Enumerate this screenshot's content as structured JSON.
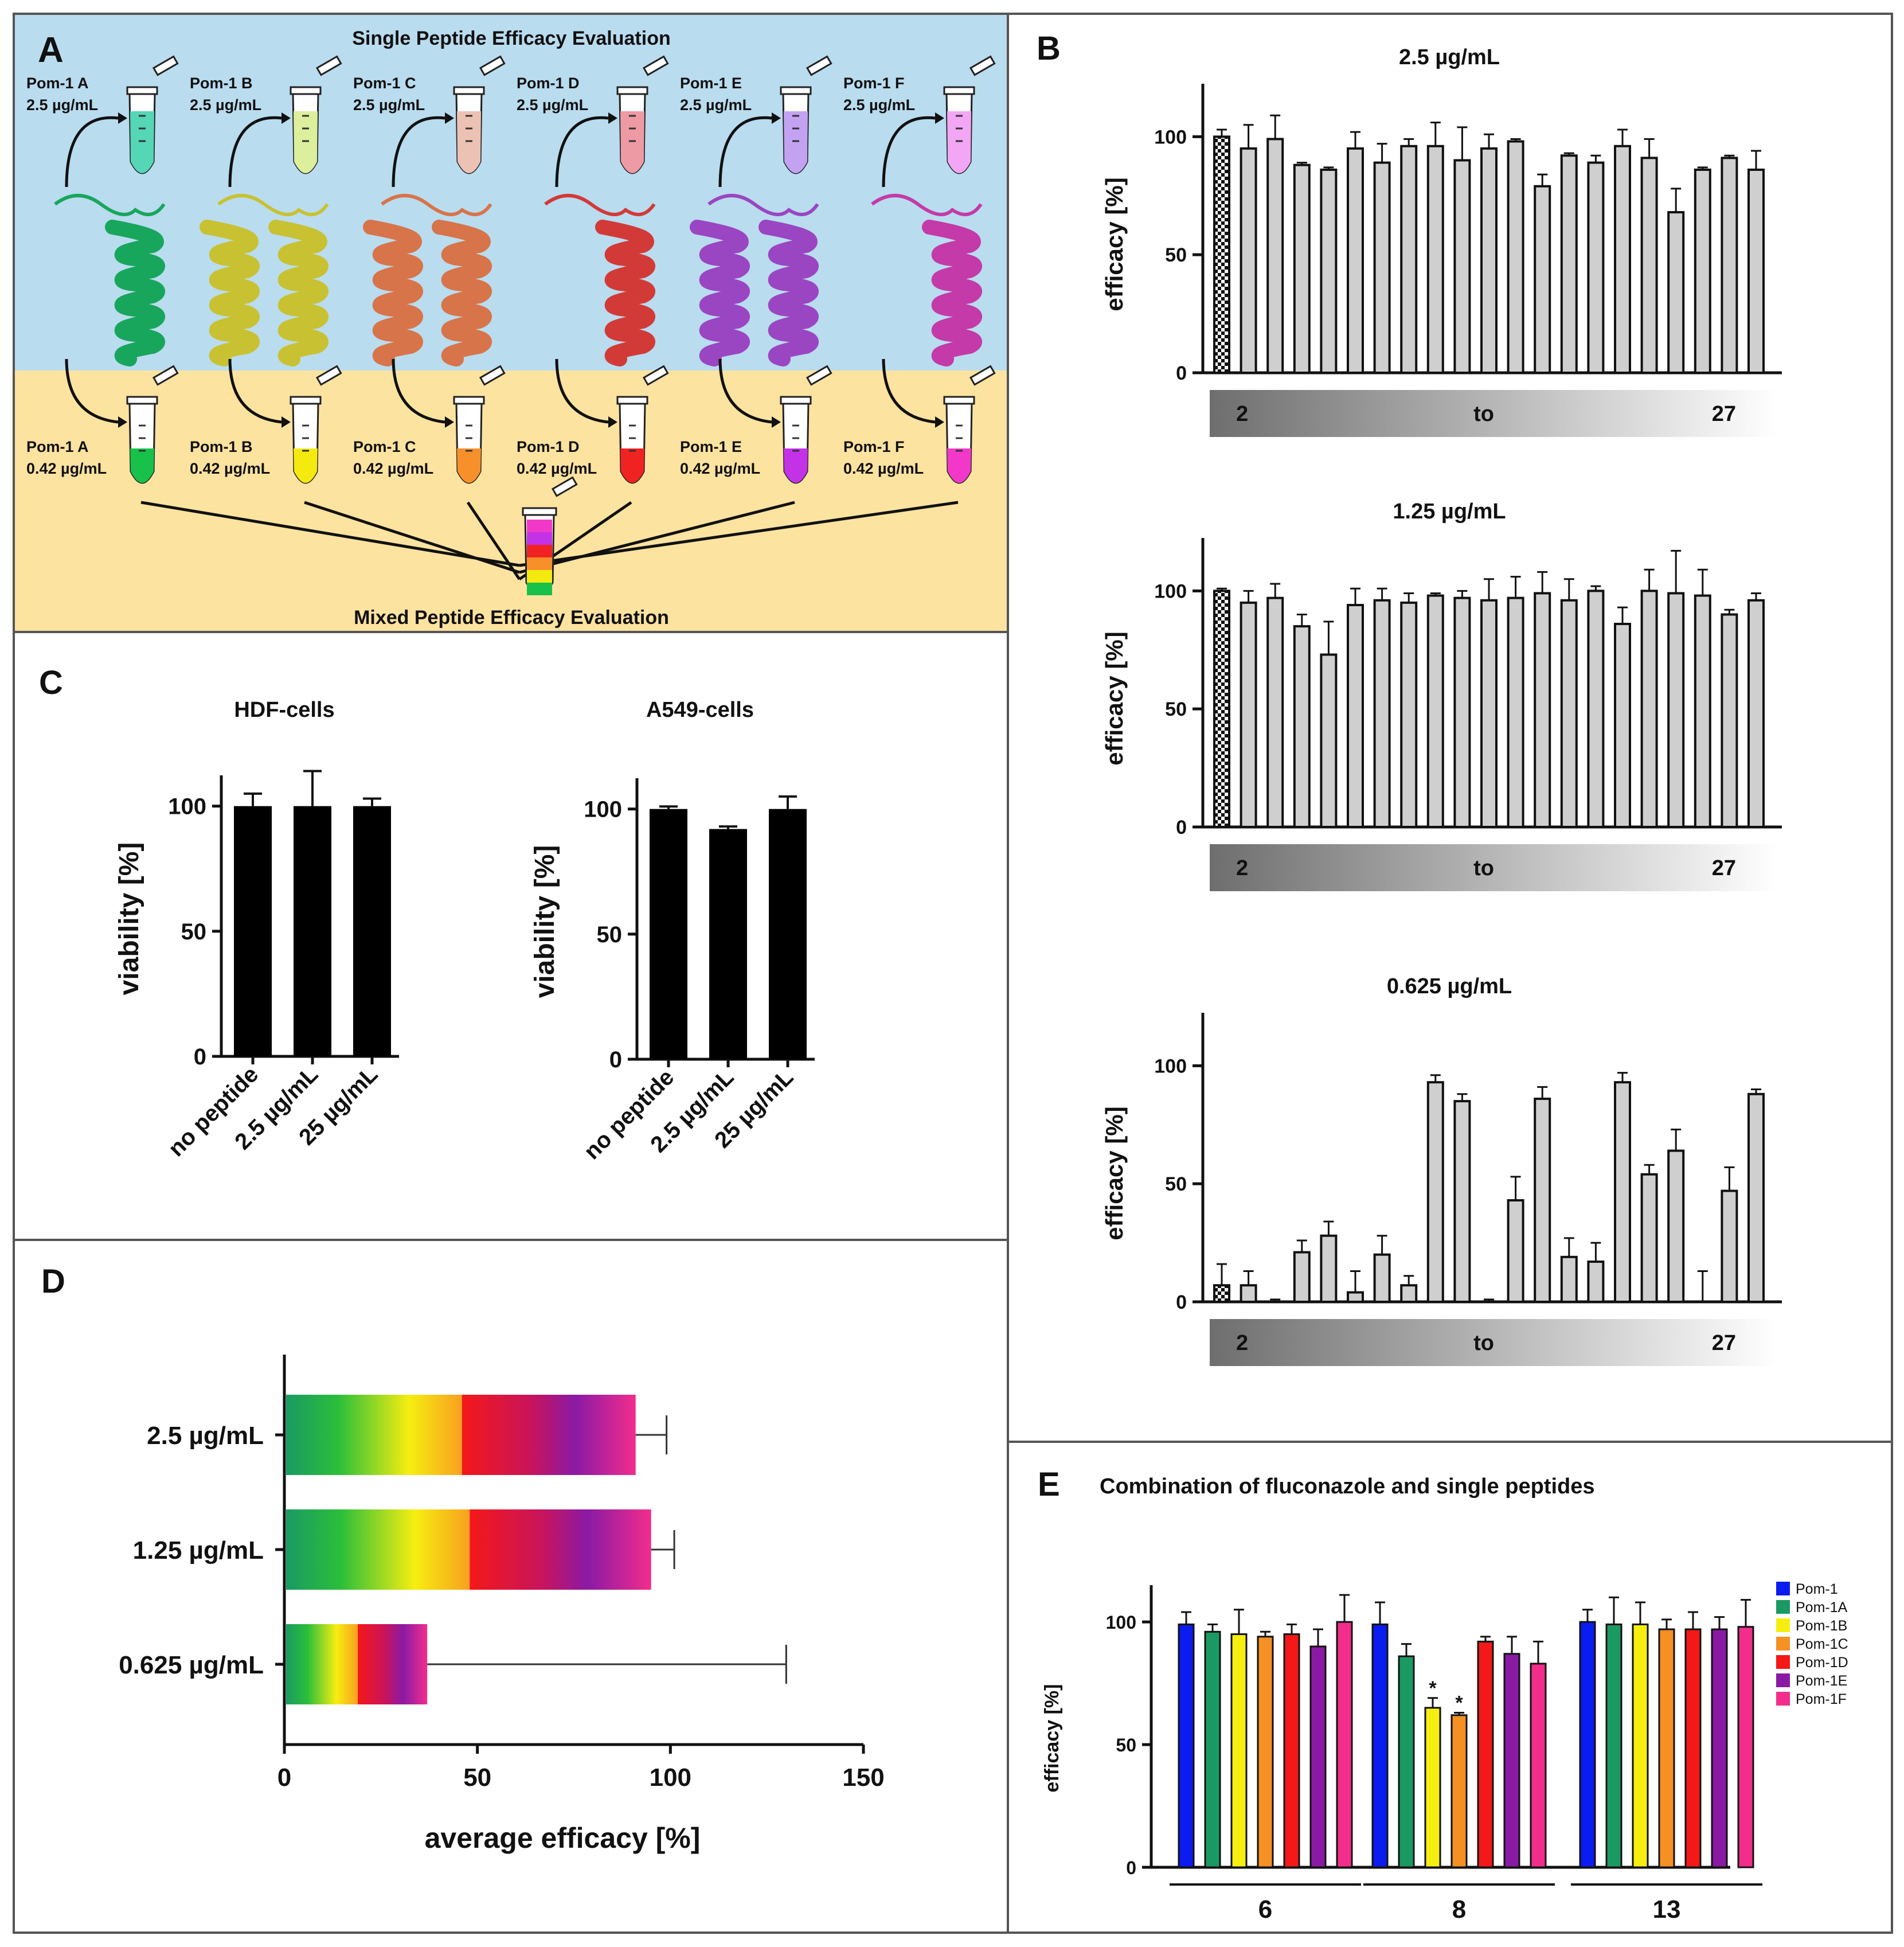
{
  "panel_labels": {
    "a": "A",
    "b": "B",
    "c": "C",
    "d": "D",
    "e": "E"
  },
  "colors": {
    "panel_a_top_bg": "#b9dcef",
    "panel_a_bottom_bg": "#fde3a0",
    "pom1": "#0a1cf0",
    "pom1a": "#1a9a62",
    "pom1b": "#f6ee10",
    "pom1c": "#f59022",
    "pom1d": "#f41818",
    "pom1e": "#8a1aa4",
    "pom1f": "#f22d8c"
  },
  "panel_a": {
    "title_top": "Single Peptide Efficacy Evaluation",
    "title_bottom": "Mixed Peptide Efficacy Evaluation",
    "tubes_top": [
      {
        "name": "Pom-1 A",
        "conc": "2.5 µg/mL",
        "color": "#55d6b4"
      },
      {
        "name": "Pom-1 B",
        "conc": "2.5 µg/mL",
        "color": "#dcef9c"
      },
      {
        "name": "Pom-1 C",
        "conc": "2.5 µg/mL",
        "color": "#ecc2b4"
      },
      {
        "name": "Pom-1 D",
        "conc": "2.5 µg/mL",
        "color": "#ee9aa4"
      },
      {
        "name": "Pom-1 E",
        "conc": "2.5 µg/mL",
        "color": "#c4a2f2"
      },
      {
        "name": "Pom-1 F",
        "conc": "2.5 µg/mL",
        "color": "#f2a6f4"
      }
    ],
    "helix_colors": [
      "#18a65c",
      "#c8c232",
      "#d8744a",
      "#d23a38",
      "#9a46c2",
      "#c43aa8"
    ],
    "tubes_bottom": [
      {
        "name": "Pom-1 A",
        "conc": "0.42 µg/mL",
        "color": "#18c24a"
      },
      {
        "name": "Pom-1 B",
        "conc": "0.42 µg/mL",
        "color": "#f4ea10"
      },
      {
        "name": "Pom-1 C",
        "conc": "0.42 µg/mL",
        "color": "#f8902a"
      },
      {
        "name": "Pom-1 D",
        "conc": "0.42 µg/mL",
        "color": "#f02222"
      },
      {
        "name": "Pom-1 E",
        "conc": "0.42 µg/mL",
        "color": "#c432e8"
      },
      {
        "name": "Pom-1 F",
        "conc": "0.42 µg/mL",
        "color": "#f238c8"
      }
    ],
    "mixed_tube_layers": [
      "#18c24a",
      "#f4ea10",
      "#f8902a",
      "#f02222",
      "#c432e8",
      "#f238c8"
    ]
  },
  "chart_data": [
    {
      "id": "B1",
      "type": "bar",
      "title": "2.5 µg/mL",
      "ylabel": "efficacy [%]",
      "ylim": [
        0,
        120
      ],
      "yticks": [
        0,
        50,
        100
      ],
      "gradient_labels": [
        "2",
        "to",
        "27"
      ],
      "first_bar_pattern": "checkered",
      "values": [
        100,
        95,
        99,
        88,
        86,
        95,
        89,
        96,
        96,
        90,
        95,
        98,
        79,
        92,
        89,
        96,
        91,
        68,
        86,
        91,
        86
      ],
      "errors": [
        3,
        10,
        10,
        1,
        1,
        7,
        8,
        3,
        10,
        14,
        6,
        1,
        5,
        1,
        3,
        7,
        8,
        10,
        1,
        1,
        8
      ]
    },
    {
      "id": "B2",
      "type": "bar",
      "title": "1.25 µg/mL",
      "ylabel": "efficacy [%]",
      "ylim": [
        0,
        120
      ],
      "yticks": [
        0,
        50,
        100
      ],
      "gradient_labels": [
        "2",
        "to",
        "27"
      ],
      "first_bar_pattern": "checkered",
      "values": [
        100,
        95,
        97,
        85,
        73,
        94,
        96,
        95,
        98,
        97,
        96,
        97,
        99,
        96,
        100,
        86,
        100,
        99,
        98,
        90,
        96
      ],
      "errors": [
        1,
        5,
        6,
        5,
        14,
        7,
        5,
        4,
        1,
        3,
        9,
        9,
        9,
        9,
        2,
        7,
        9,
        18,
        11,
        2,
        3
      ]
    },
    {
      "id": "B3",
      "type": "bar",
      "title": "0.625 µg/mL",
      "ylabel": "efficacy [%]",
      "ylim": [
        0,
        120
      ],
      "yticks": [
        0,
        50,
        100
      ],
      "gradient_labels": [
        "2",
        "to",
        "27"
      ],
      "first_bar_pattern": "checkered",
      "values": [
        7,
        7,
        0,
        21,
        28,
        4,
        20,
        7,
        93,
        85,
        0,
        43,
        86,
        19,
        17,
        93,
        54,
        64,
        0,
        47,
        88
      ],
      "errors": [
        9,
        6,
        1,
        5,
        6,
        9,
        8,
        4,
        3,
        3,
        1,
        10,
        5,
        8,
        8,
        4,
        4,
        9,
        13,
        10,
        2
      ]
    },
    {
      "id": "C1",
      "type": "bar",
      "title": "HDF-cells",
      "ylabel": "viability [%]",
      "ylim": [
        0,
        110
      ],
      "yticks": [
        0,
        50,
        100
      ],
      "categories": [
        "no peptide",
        "2.5 µg/mL",
        "25 µg/mL"
      ],
      "values": [
        100,
        100,
        100
      ],
      "errors": [
        5,
        14,
        3
      ]
    },
    {
      "id": "C2",
      "type": "bar",
      "title": "A549-cells",
      "ylabel": "viability [%]",
      "ylim": [
        0,
        110
      ],
      "yticks": [
        0,
        50,
        100
      ],
      "categories": [
        "no peptide",
        "2.5 µg/mL",
        "25 µg/mL"
      ],
      "values": [
        100,
        92,
        100
      ],
      "errors": [
        1,
        1,
        5
      ]
    },
    {
      "id": "D",
      "type": "bar",
      "orientation": "horizontal",
      "xlabel": "average efficacy [%]",
      "xlim": [
        0,
        150
      ],
      "xticks": [
        0,
        50,
        100,
        150
      ],
      "categories": [
        "2.5 µg/mL",
        "1.25 µg/mL",
        "0.625 µg/mL"
      ],
      "values": [
        91,
        95,
        37
      ],
      "errors": [
        8,
        6,
        93
      ],
      "split_values": [
        46,
        48,
        19
      ]
    },
    {
      "id": "E",
      "type": "bar",
      "title": "Combination of fluconazole and single peptides",
      "ylabel": "efficacy [%]",
      "ylim": [
        0,
        115
      ],
      "yticks": [
        0,
        50,
        100
      ],
      "categories": [
        "6",
        "8",
        "13"
      ],
      "series": [
        {
          "name": "Pom-1",
          "values": [
            99,
            99,
            100
          ],
          "errors": [
            5,
            9,
            5
          ]
        },
        {
          "name": "Pom-1A",
          "values": [
            96,
            86,
            99
          ],
          "errors": [
            3,
            5,
            11
          ]
        },
        {
          "name": "Pom-1B",
          "values": [
            95,
            65,
            99
          ],
          "errors": [
            10,
            4,
            9
          ]
        },
        {
          "name": "Pom-1C",
          "values": [
            94,
            62,
            97
          ],
          "errors": [
            2,
            1,
            4
          ]
        },
        {
          "name": "Pom-1D",
          "values": [
            95,
            92,
            97
          ],
          "errors": [
            4,
            2,
            7
          ]
        },
        {
          "name": "Pom-1E",
          "values": [
            90,
            87,
            97
          ],
          "errors": [
            7,
            7,
            5
          ]
        },
        {
          "name": "Pom-1F",
          "values": [
            100,
            83,
            98
          ],
          "errors": [
            11,
            9,
            11
          ]
        }
      ],
      "significance_marks": [
        "*",
        "*"
      ]
    }
  ]
}
